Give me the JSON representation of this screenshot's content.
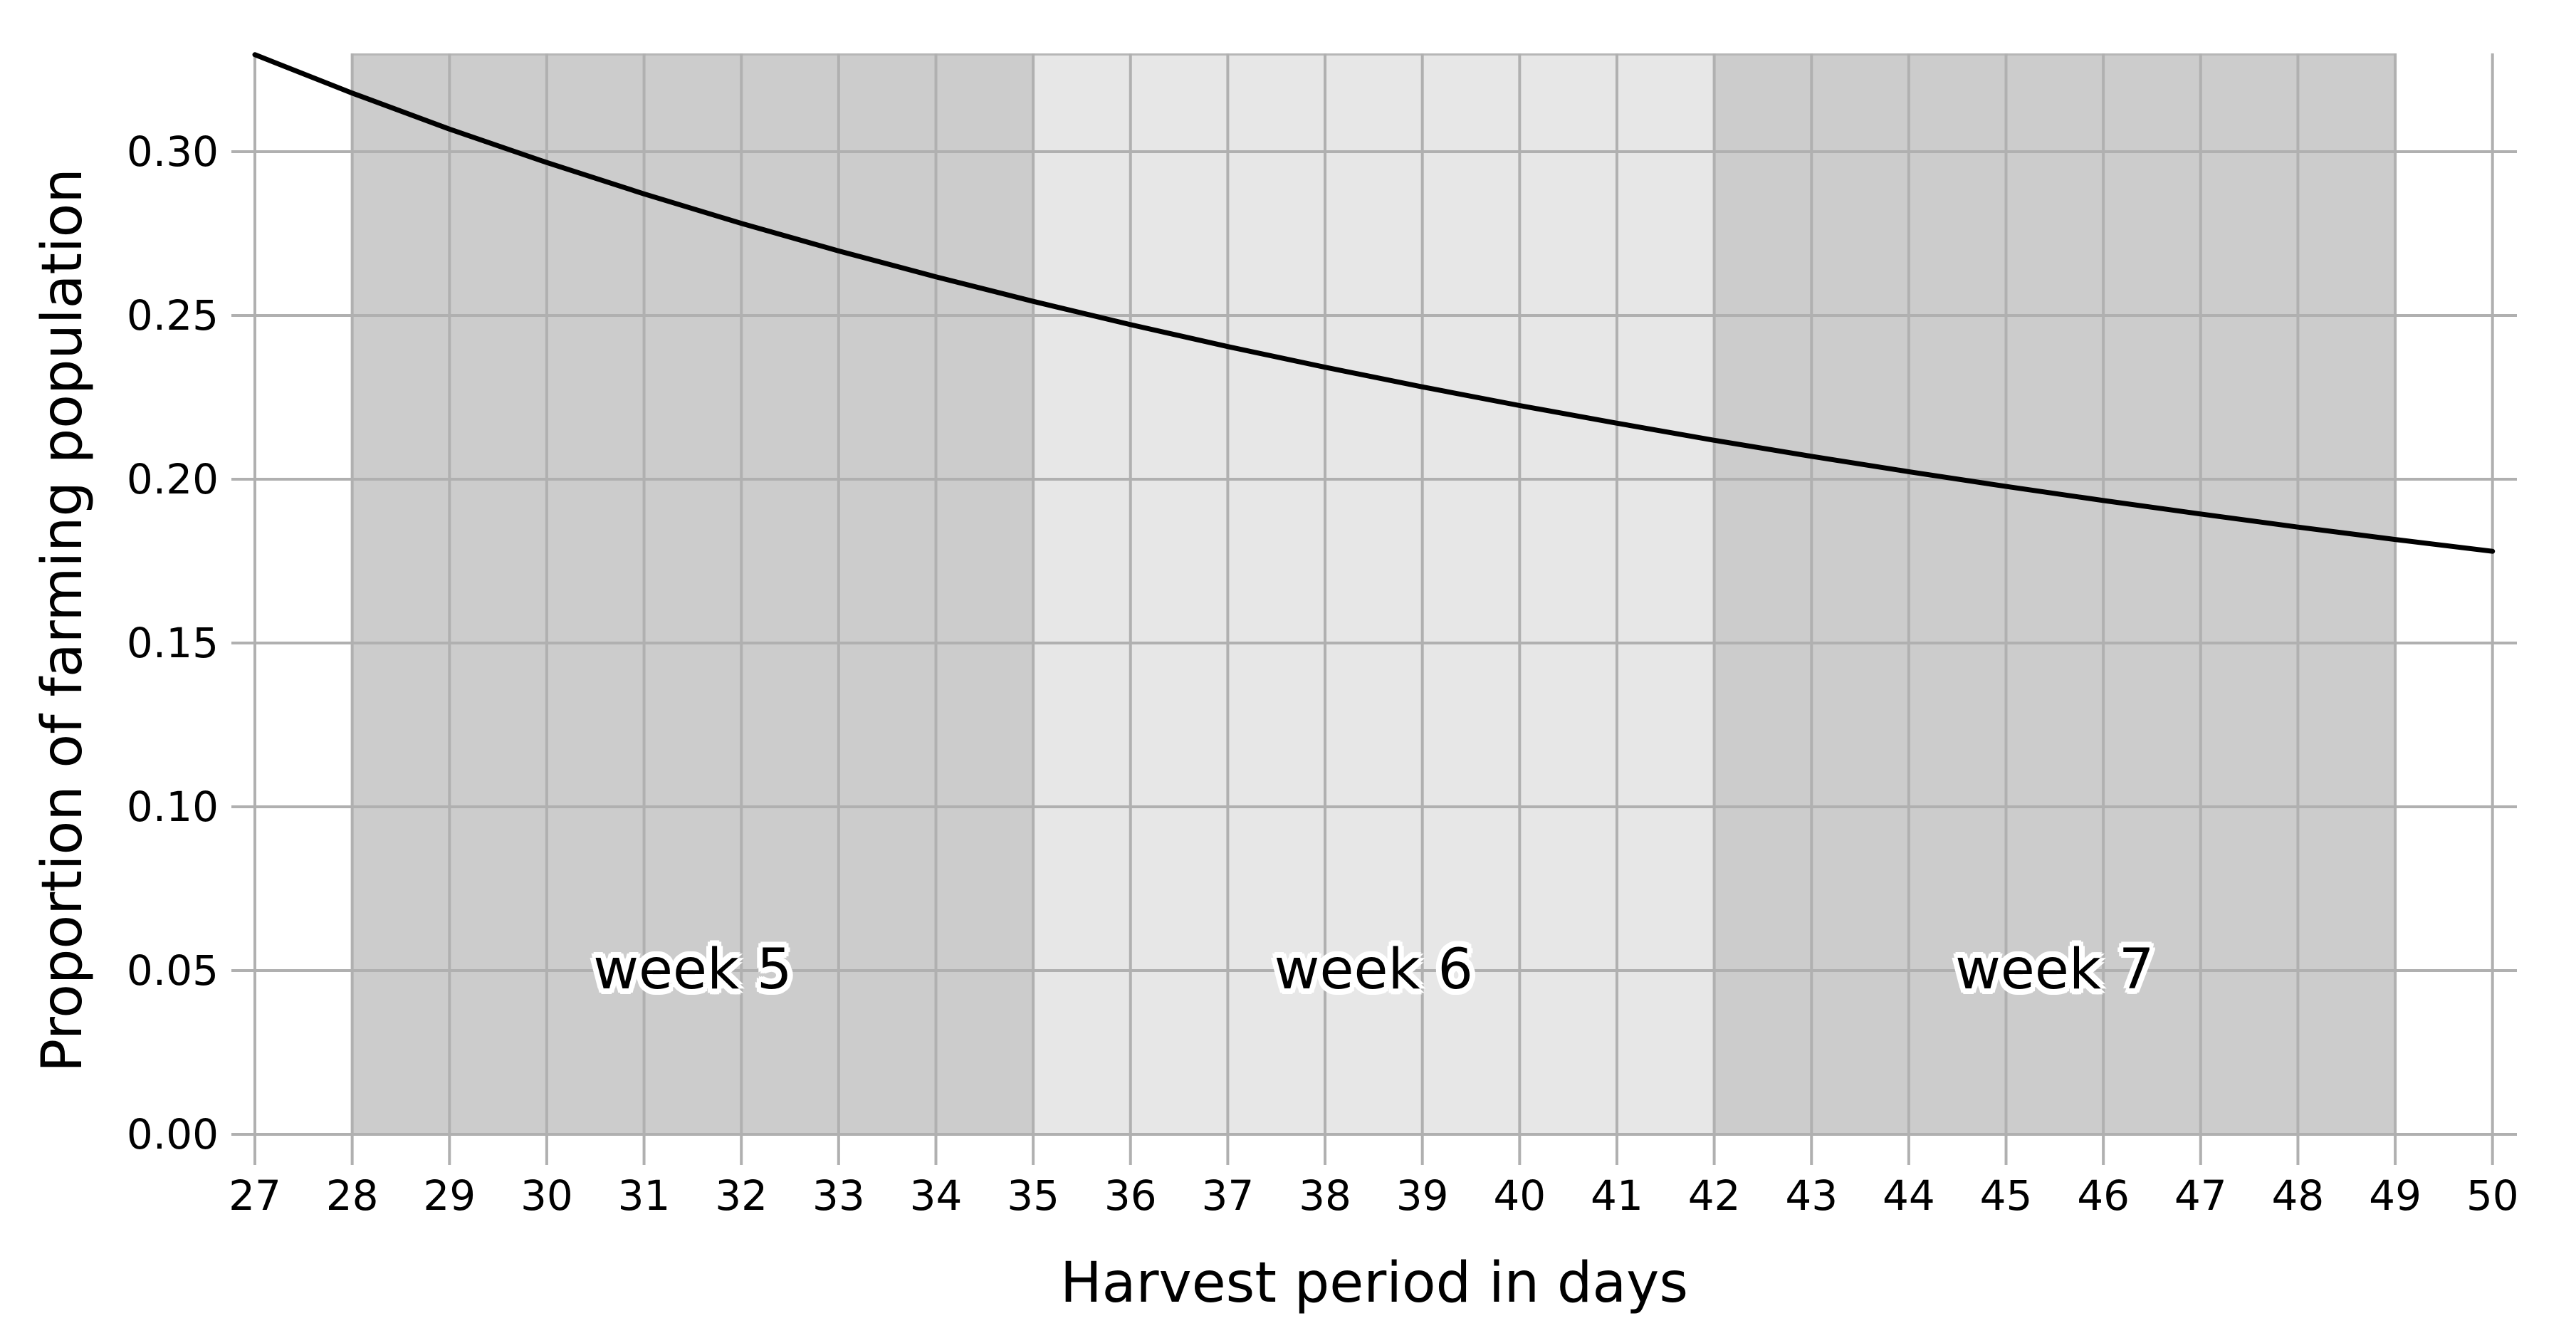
{
  "chart_data": {
    "type": "line",
    "title": "",
    "xlabel": "Harvest period in days",
    "ylabel": "Proportion of farming population",
    "xlim": [
      26.75,
      50.25
    ],
    "ylim": [
      0,
      0.33
    ],
    "grid": true,
    "legend": false,
    "x_ticks": [
      27,
      28,
      29,
      30,
      31,
      32,
      33,
      34,
      35,
      36,
      37,
      38,
      39,
      40,
      41,
      42,
      43,
      44,
      45,
      46,
      47,
      48,
      49,
      50
    ],
    "y_ticks": [
      {
        "value": 0.0,
        "label": "0.00"
      },
      {
        "value": 0.05,
        "label": "0.05"
      },
      {
        "value": 0.1,
        "label": "0.10"
      },
      {
        "value": 0.15,
        "label": "0.15"
      },
      {
        "value": 0.2,
        "label": "0.20"
      },
      {
        "value": 0.25,
        "label": "0.25"
      },
      {
        "value": 0.3,
        "label": "0.30"
      }
    ],
    "series": [
      {
        "name": "proportion of farming population",
        "x": [
          27,
          28,
          29,
          30,
          31,
          32,
          33,
          34,
          35,
          36,
          37,
          38,
          39,
          40,
          41,
          42,
          43,
          44,
          45,
          46,
          47,
          48,
          49,
          50
        ],
        "y": [
          0.3296,
          0.3179,
          0.3069,
          0.2967,
          0.2871,
          0.2781,
          0.2697,
          0.2618,
          0.2543,
          0.2472,
          0.2405,
          0.2342,
          0.2282,
          0.2225,
          0.2171,
          0.2119,
          0.207,
          0.2023,
          0.1978,
          0.1935,
          0.1894,
          0.1854,
          0.1816,
          0.178
        ]
      }
    ],
    "regions": [
      {
        "label": "week 5",
        "x_start": 28,
        "x_end": 35,
        "fill": "#cccccc"
      },
      {
        "label": "week 6",
        "x_start": 35,
        "x_end": 42,
        "fill": "#e7e7e7"
      },
      {
        "label": "week 7",
        "x_start": 42,
        "x_end": 49,
        "fill": "#cccccc"
      }
    ],
    "colors": {
      "curve": "#000000",
      "gridline": "#b0b0b0",
      "region_edge": "#b6b6b6",
      "background": "#ffffff",
      "text": "#000000",
      "halo": "#ffffff"
    }
  }
}
